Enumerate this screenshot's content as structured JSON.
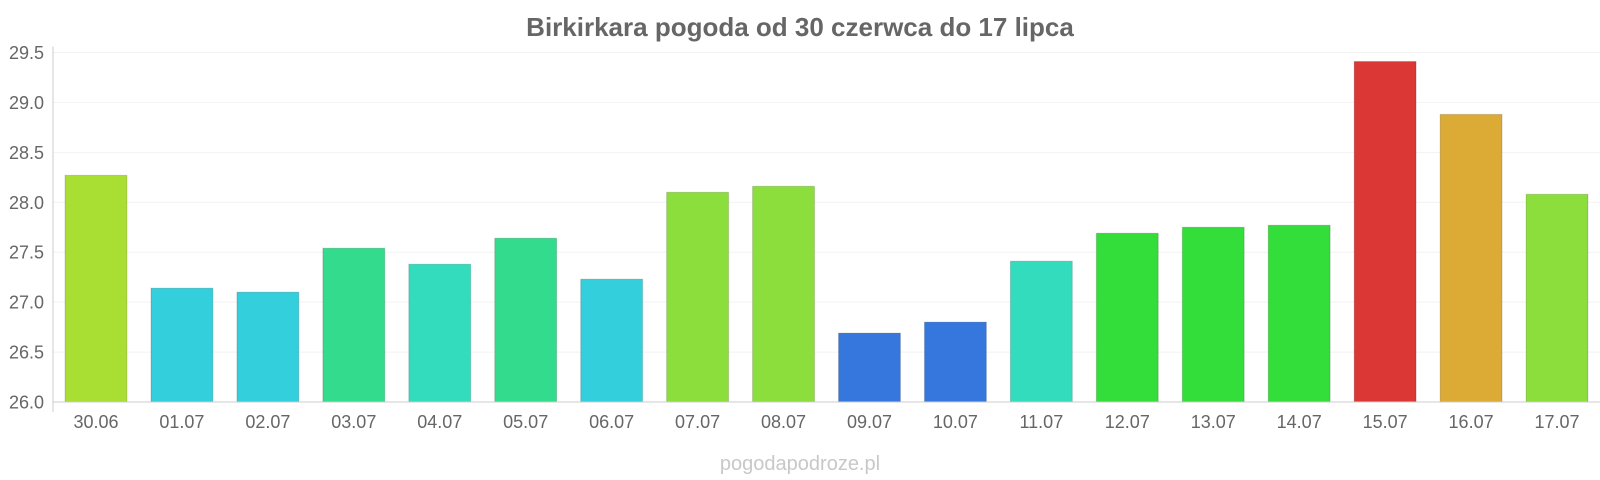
{
  "chart_data": {
    "type": "bar",
    "title": "Birkirkara pogoda od 30 czerwca do 17 lipca",
    "xlabel": "",
    "ylabel": "",
    "categories": [
      "30.06",
      "01.07",
      "02.07",
      "03.07",
      "04.07",
      "05.07",
      "06.07",
      "07.07",
      "08.07",
      "09.07",
      "10.07",
      "11.07",
      "12.07",
      "13.07",
      "14.07",
      "15.07",
      "16.07",
      "17.07"
    ],
    "values": [
      28.27,
      27.14,
      27.1,
      27.54,
      27.38,
      27.64,
      27.23,
      28.1,
      28.16,
      26.69,
      26.8,
      27.41,
      27.69,
      27.75,
      27.77,
      29.41,
      28.88,
      28.08
    ],
    "colors": [
      "#a9de33",
      "#33cfdc",
      "#33cfdc",
      "#33dc8c",
      "#33dcbc",
      "#33dc8c",
      "#33cfdc",
      "#8bde3b",
      "#8bde3b",
      "#3577dc",
      "#3577dc",
      "#33dcbc",
      "#33dd3a",
      "#33dd3a",
      "#33dd3a",
      "#db3734",
      "#dcab35",
      "#8bde3b"
    ],
    "ylim": [
      26.0,
      29.5
    ],
    "yticks": [
      "26.0",
      "26.5",
      "27.0",
      "27.5",
      "28.0",
      "28.5",
      "29.0",
      "29.5"
    ],
    "grid": true,
    "legend": "none"
  },
  "watermark": "pogodapodroze.pl"
}
